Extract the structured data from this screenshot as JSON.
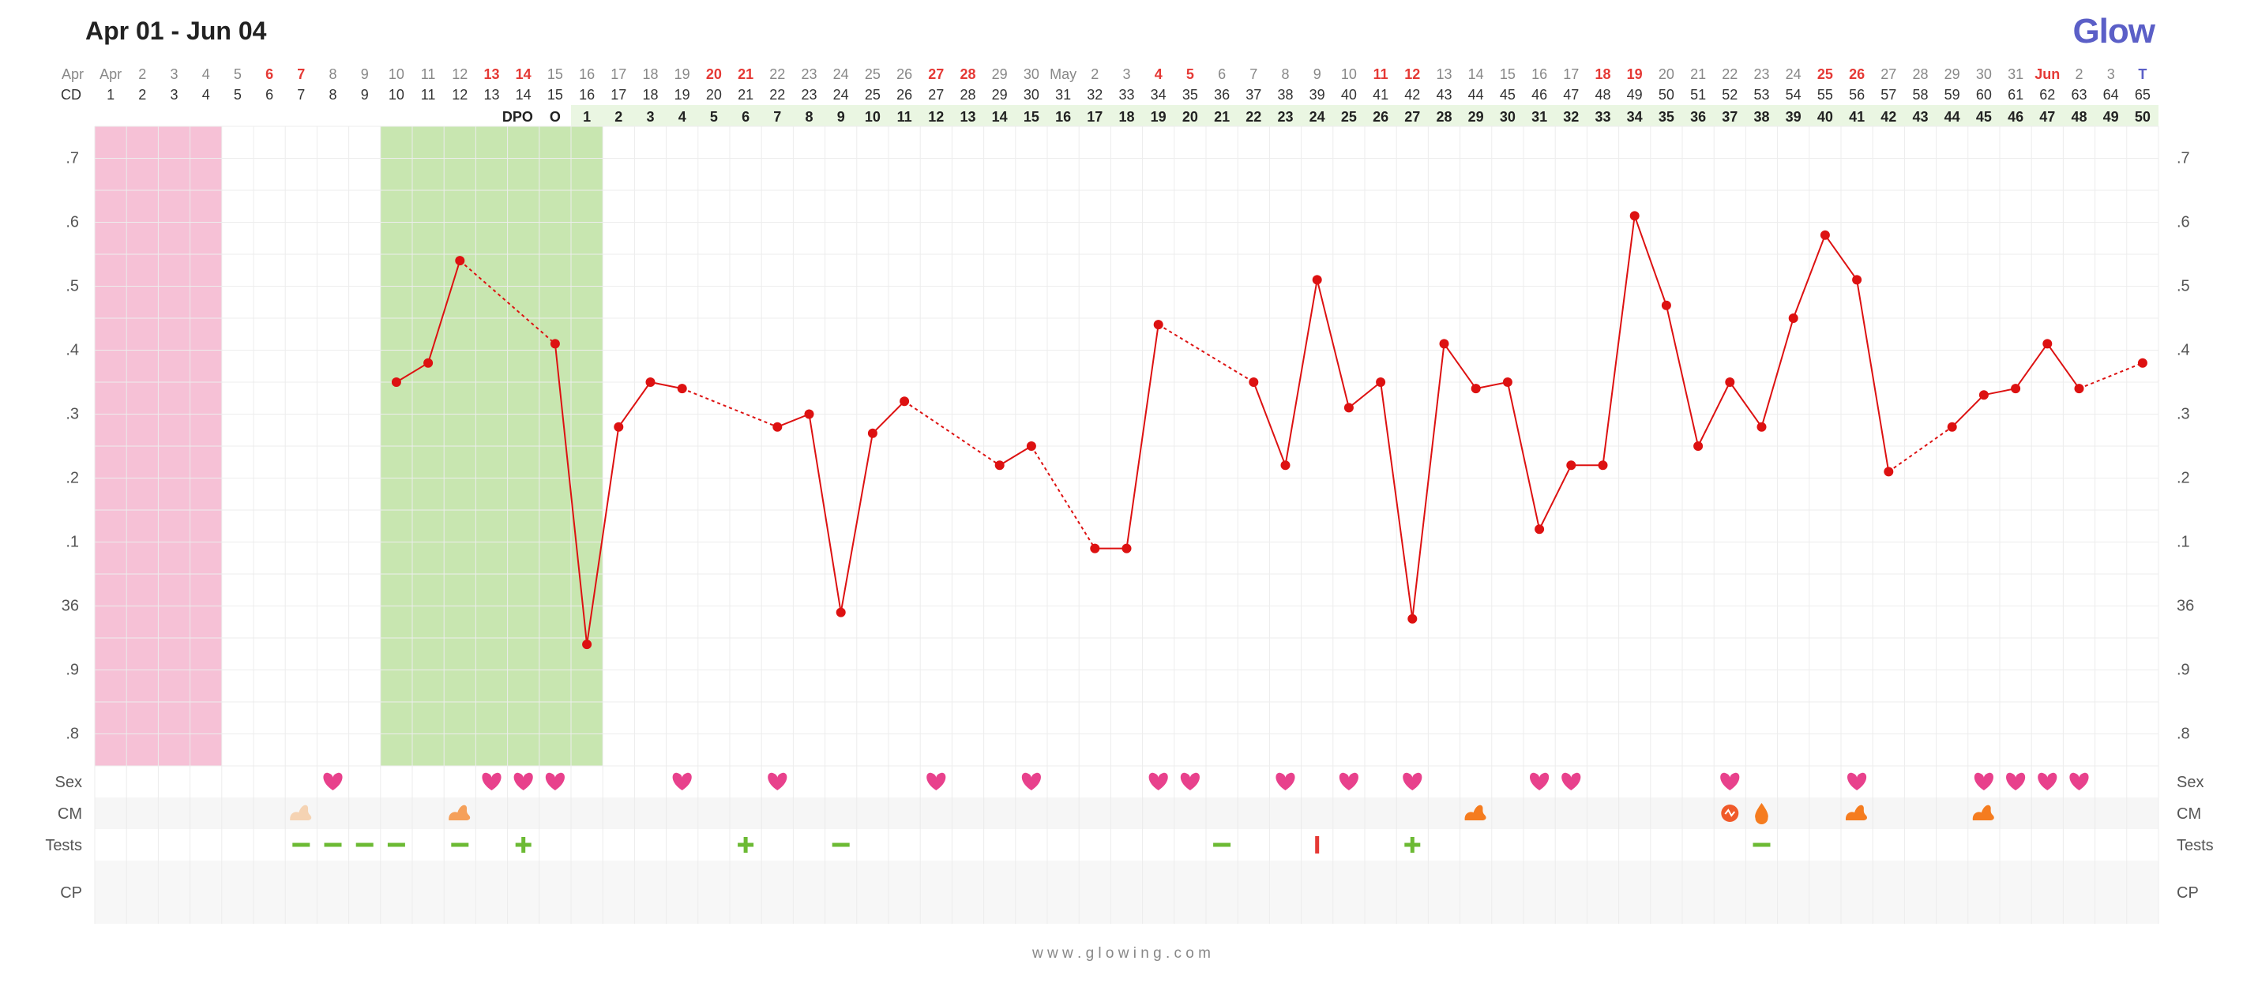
{
  "header": {
    "title": "Apr 01 - Jun 04",
    "logo": "Glow",
    "footer": "w w w . g l o w i n g . c o m",
    "brand_color": "#5b5fc7"
  },
  "colors": {
    "line": "#dd1111",
    "period_band": "#f6c1d6",
    "fertile_band": "#c8e6b0",
    "dpo_row_bg": "#eaf6e2",
    "weekend": "#e53935",
    "today": "#5b5fc7",
    "heart": "#e8418c",
    "test_negative": "#6cba34",
    "test_positive": "#6cba34",
    "test_line": "#e53935"
  },
  "rows": {
    "month_label": "Apr",
    "cd_label": "CD",
    "dpo_label": "DPO",
    "sex_label": "Sex",
    "cm_label": "CM",
    "tests_label": "Tests",
    "cp_label": "CP"
  },
  "date_labels": [
    "Apr",
    "2",
    "3",
    "4",
    "5",
    "6",
    "7",
    "8",
    "9",
    "10",
    "11",
    "12",
    "13",
    "14",
    "15",
    "16",
    "17",
    "18",
    "19",
    "20",
    "21",
    "22",
    "23",
    "24",
    "25",
    "26",
    "27",
    "28",
    "29",
    "30",
    "May",
    "2",
    "3",
    "4",
    "5",
    "6",
    "7",
    "8",
    "9",
    "10",
    "11",
    "12",
    "13",
    "14",
    "15",
    "16",
    "17",
    "18",
    "19",
    "20",
    "21",
    "22",
    "23",
    "24",
    "25",
    "26",
    "27",
    "28",
    "29",
    "30",
    "31",
    "Jun",
    "2",
    "3",
    "T"
  ],
  "weekend_indices": [
    5,
    6,
    12,
    13,
    19,
    20,
    26,
    27,
    33,
    34,
    40,
    41,
    47,
    48,
    54,
    55,
    61
  ],
  "today_index": 64,
  "cd_labels": [
    "1",
    "2",
    "3",
    "4",
    "5",
    "6",
    "7",
    "8",
    "9",
    "10",
    "11",
    "12",
    "13",
    "14",
    "15",
    "16",
    "17",
    "18",
    "19",
    "20",
    "21",
    "22",
    "23",
    "24",
    "25",
    "26",
    "27",
    "28",
    "29",
    "30",
    "31",
    "32",
    "33",
    "34",
    "35",
    "36",
    "37",
    "38",
    "39",
    "40",
    "41",
    "42",
    "43",
    "44",
    "45",
    "46",
    "47",
    "48",
    "49",
    "50",
    "51",
    "52",
    "53",
    "54",
    "55",
    "56",
    "57",
    "58",
    "59",
    "60",
    "61",
    "62",
    "63",
    "64",
    "65"
  ],
  "dpo": {
    "ovulation_marker": "O",
    "ovulation_index": 14,
    "values": [
      "1",
      "2",
      "3",
      "4",
      "5",
      "6",
      "7",
      "8",
      "9",
      "10",
      "11",
      "12",
      "13",
      "14",
      "15",
      "16",
      "17",
      "18",
      "19",
      "20",
      "21",
      "22",
      "23",
      "24",
      "25",
      "26",
      "27",
      "28",
      "29",
      "30",
      "31",
      "32",
      "33",
      "34",
      "35",
      "36",
      "37",
      "38",
      "39",
      "40",
      "41",
      "42",
      "43",
      "44",
      "45",
      "46",
      "47",
      "48",
      "49",
      "50"
    ]
  },
  "y_axis": {
    "ticks": [
      ".7",
      ".6",
      ".5",
      ".4",
      ".3",
      ".2",
      ".1",
      "36",
      ".9",
      ".8"
    ],
    "tick_values": [
      36.7,
      36.6,
      36.5,
      36.4,
      36.3,
      36.2,
      36.1,
      36.0,
      35.9,
      35.8
    ],
    "min": 35.75,
    "max": 36.75
  },
  "chart_data": {
    "type": "line",
    "title": "Apr 01 - Jun 04",
    "x": [
      "Apr 01",
      "Apr 02",
      "Apr 03",
      "Apr 04",
      "Apr 05",
      "Apr 06",
      "Apr 07",
      "Apr 08",
      "Apr 09",
      "Apr 10",
      "Apr 11",
      "Apr 12",
      "Apr 13",
      "Apr 14",
      "Apr 15",
      "Apr 16",
      "Apr 17",
      "Apr 18",
      "Apr 19",
      "Apr 20",
      "Apr 21",
      "Apr 22",
      "Apr 23",
      "Apr 24",
      "Apr 25",
      "Apr 26",
      "Apr 27",
      "Apr 28",
      "Apr 29",
      "Apr 30",
      "May 01",
      "May 02",
      "May 03",
      "May 04",
      "May 05",
      "May 06",
      "May 07",
      "May 08",
      "May 09",
      "May 10",
      "May 11",
      "May 12",
      "May 13",
      "May 14",
      "May 15",
      "May 16",
      "May 17",
      "May 18",
      "May 19",
      "May 20",
      "May 21",
      "May 22",
      "May 23",
      "May 24",
      "May 25",
      "May 26",
      "May 27",
      "May 28",
      "May 29",
      "May 30",
      "May 31",
      "Jun 01",
      "Jun 02",
      "Jun 03",
      "Jun 04"
    ],
    "temperatures": [
      null,
      null,
      null,
      null,
      null,
      null,
      null,
      null,
      null,
      36.35,
      36.38,
      36.54,
      null,
      null,
      36.41,
      35.94,
      36.28,
      36.35,
      36.34,
      null,
      null,
      36.28,
      36.3,
      35.99,
      36.27,
      36.32,
      null,
      null,
      36.22,
      36.25,
      null,
      36.09,
      36.09,
      36.44,
      null,
      null,
      36.35,
      36.22,
      36.51,
      36.31,
      36.35,
      35.98,
      36.41,
      36.34,
      36.35,
      36.12,
      36.22,
      36.22,
      36.61,
      36.47,
      36.25,
      36.35,
      36.28,
      36.45,
      36.58,
      36.51,
      36.21,
      null,
      36.28,
      36.33,
      36.34,
      36.41,
      36.34,
      null,
      36.38
    ],
    "ylim": [
      35.75,
      36.75
    ],
    "period_days": [
      0,
      1,
      2,
      3
    ],
    "fertile_window_days": [
      9,
      10,
      11,
      12,
      13,
      14,
      15
    ],
    "ovulation_day_index": 14,
    "sex_days": [
      7,
      12,
      13,
      14,
      18,
      21,
      26,
      29,
      33,
      34,
      37,
      39,
      41,
      45,
      46,
      51,
      55,
      59,
      60,
      61,
      62
    ],
    "cm": [
      {
        "index": 6,
        "type": "creamy",
        "color": "#f5d3b3"
      },
      {
        "index": 11,
        "type": "creamy",
        "color": "#f5a05a"
      },
      {
        "index": 43,
        "type": "sticky",
        "color": "#f57c1f"
      },
      {
        "index": 51,
        "type": "spotting",
        "color": "#f05a2a"
      },
      {
        "index": 52,
        "type": "watery",
        "color": "#f57c1f"
      },
      {
        "index": 55,
        "type": "sticky",
        "color": "#f57c1f"
      },
      {
        "index": 59,
        "type": "sticky",
        "color": "#f57c1f"
      }
    ],
    "tests": [
      {
        "index": 6,
        "result": "negative"
      },
      {
        "index": 7,
        "result": "negative"
      },
      {
        "index": 8,
        "result": "negative"
      },
      {
        "index": 9,
        "result": "negative"
      },
      {
        "index": 11,
        "result": "negative"
      },
      {
        "index": 13,
        "result": "positive"
      },
      {
        "index": 20,
        "result": "positive"
      },
      {
        "index": 23,
        "result": "negative"
      },
      {
        "index": 35,
        "result": "negative"
      },
      {
        "index": 38,
        "result": "line"
      },
      {
        "index": 41,
        "result": "positive"
      },
      {
        "index": 52,
        "result": "negative"
      }
    ]
  }
}
